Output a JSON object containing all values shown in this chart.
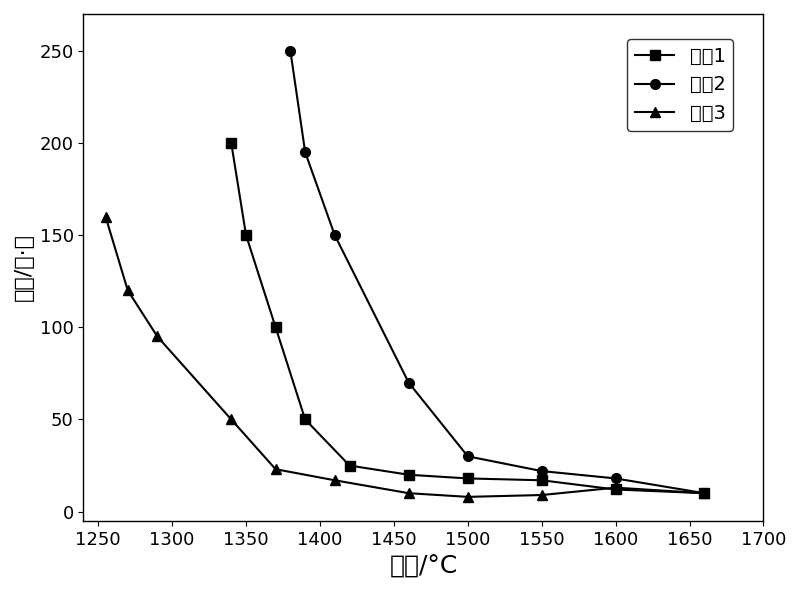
{
  "series1": {
    "label": "样哈1",
    "x": [
      1340,
      1350,
      1370,
      1390,
      1420,
      1460,
      1500,
      1550,
      1600,
      1660
    ],
    "y": [
      200,
      150,
      100,
      50,
      25,
      20,
      18,
      17,
      12,
      10
    ],
    "marker": "s",
    "color": "#000000"
  },
  "series2": {
    "label": "样哈2",
    "x": [
      1380,
      1390,
      1410,
      1460,
      1500,
      1550,
      1600,
      1660
    ],
    "y": [
      250,
      195,
      150,
      70,
      30,
      22,
      18,
      10
    ],
    "marker": "o",
    "color": "#000000"
  },
  "series3": {
    "label": "样哈3",
    "x": [
      1255,
      1270,
      1290,
      1340,
      1370,
      1410,
      1460,
      1500,
      1550,
      1600,
      1660
    ],
    "y": [
      160,
      120,
      95,
      50,
      23,
      17,
      10,
      8,
      9,
      13,
      10
    ],
    "marker": "^",
    "color": "#000000"
  },
  "xlabel": "温度/°C",
  "ylabel": "粘度/帕·秒",
  "xlim": [
    1240,
    1700
  ],
  "ylim": [
    -5,
    270
  ],
  "xticks": [
    1250,
    1300,
    1350,
    1400,
    1450,
    1500,
    1550,
    1600,
    1650,
    1700
  ],
  "yticks": [
    0,
    50,
    100,
    150,
    200,
    250
  ],
  "background_color": "#ffffff",
  "markersize": 7,
  "linewidth": 1.5,
  "xlabel_fontsize": 18,
  "ylabel_fontsize": 16,
  "tick_fontsize": 13,
  "legend_fontsize": 14
}
